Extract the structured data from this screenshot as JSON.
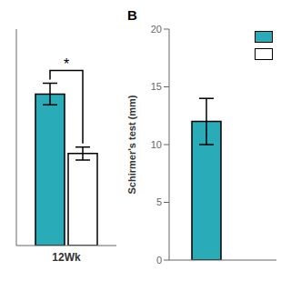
{
  "chart_data": [
    {
      "type": "bar",
      "categories": [
        "12Wk"
      ],
      "series": [
        {
          "color": "#2aacb8",
          "values": [
            14.0
          ],
          "error": [
            1.0
          ]
        },
        {
          "color": "#ffffff",
          "values": [
            8.5
          ],
          "error": [
            0.6
          ]
        }
      ],
      "ylim": [
        0,
        20
      ],
      "yticks": [],
      "tick_labels": "x",
      "annotations": [
        "*"
      ]
    },
    {
      "type": "bar",
      "title": "B",
      "ylabel": "Schirmer's test (mm)",
      "categories": [
        null
      ],
      "series": [
        {
          "color": "#2aacb8",
          "values": [
            12.0
          ],
          "error": [
            2.0
          ]
        },
        {
          "color": "#ffffff",
          "values": [
            null
          ]
        }
      ],
      "ylim": [
        0,
        20
      ],
      "yticks": [
        0,
        5,
        10,
        15,
        20
      ],
      "tick_labels": "y",
      "legend": "upper right"
    }
  ]
}
